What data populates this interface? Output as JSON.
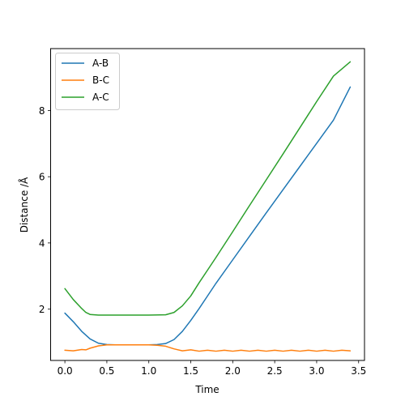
{
  "chart_data": {
    "type": "line",
    "title": "",
    "xlabel": "Time",
    "ylabel": "Distance /Å",
    "xlim": [
      -0.17,
      3.57
    ],
    "ylim": [
      0.45,
      9.87
    ],
    "xticks": [
      0.0,
      0.5,
      1.0,
      1.5,
      2.0,
      2.5,
      3.0,
      3.5
    ],
    "xtick_labels": [
      "0.0",
      "0.5",
      "1.0",
      "1.5",
      "2.0",
      "2.5",
      "3.0",
      "3.5"
    ],
    "yticks": [
      2,
      4,
      6,
      8
    ],
    "ytick_labels": [
      "2",
      "4",
      "6",
      "8"
    ],
    "grid": false,
    "legend_position": "top-left",
    "series": [
      {
        "name": "A-B",
        "color": "#1f77b4",
        "x": [
          0.0,
          0.1,
          0.2,
          0.3,
          0.4,
          0.5,
          0.6,
          0.8,
          1.0,
          1.1,
          1.2,
          1.3,
          1.4,
          1.5,
          1.6,
          1.8,
          2.0,
          2.2,
          2.4,
          2.6,
          2.8,
          3.0,
          3.2,
          3.4
        ],
        "y": [
          1.88,
          1.62,
          1.33,
          1.1,
          0.97,
          0.93,
          0.92,
          0.92,
          0.92,
          0.93,
          0.96,
          1.08,
          1.33,
          1.66,
          2.02,
          2.78,
          3.49,
          4.2,
          4.91,
          5.61,
          6.31,
          7.01,
          7.71,
          8.71
        ]
      },
      {
        "name": "B-C",
        "color": "#ff7f0e",
        "x": [
          0.0,
          0.1,
          0.2,
          0.25,
          0.3,
          0.4,
          0.5,
          0.6,
          0.8,
          1.0,
          1.1,
          1.2,
          1.3,
          1.4,
          1.5,
          1.6,
          1.7,
          1.8,
          1.9,
          2.0,
          2.1,
          2.2,
          2.3,
          2.4,
          2.5,
          2.6,
          2.7,
          2.8,
          2.9,
          3.0,
          3.1,
          3.2,
          3.3,
          3.4
        ],
        "y": [
          0.76,
          0.74,
          0.78,
          0.77,
          0.82,
          0.89,
          0.92,
          0.92,
          0.92,
          0.92,
          0.91,
          0.88,
          0.8,
          0.74,
          0.77,
          0.73,
          0.76,
          0.73,
          0.76,
          0.73,
          0.76,
          0.73,
          0.76,
          0.73,
          0.76,
          0.73,
          0.76,
          0.73,
          0.76,
          0.73,
          0.76,
          0.73,
          0.76,
          0.74
        ]
      },
      {
        "name": "A-C",
        "color": "#2ca02c",
        "x": [
          0.0,
          0.1,
          0.2,
          0.25,
          0.3,
          0.4,
          0.5,
          0.6,
          0.8,
          1.0,
          1.2,
          1.3,
          1.4,
          1.5,
          1.6,
          1.8,
          2.0,
          2.2,
          2.4,
          2.6,
          2.8,
          3.0,
          3.2,
          3.4
        ],
        "y": [
          2.62,
          2.29,
          2.02,
          1.9,
          1.84,
          1.82,
          1.82,
          1.82,
          1.82,
          1.82,
          1.83,
          1.9,
          2.1,
          2.4,
          2.8,
          3.56,
          4.34,
          5.13,
          5.91,
          6.69,
          7.48,
          8.27,
          9.04,
          9.47
        ]
      }
    ]
  }
}
